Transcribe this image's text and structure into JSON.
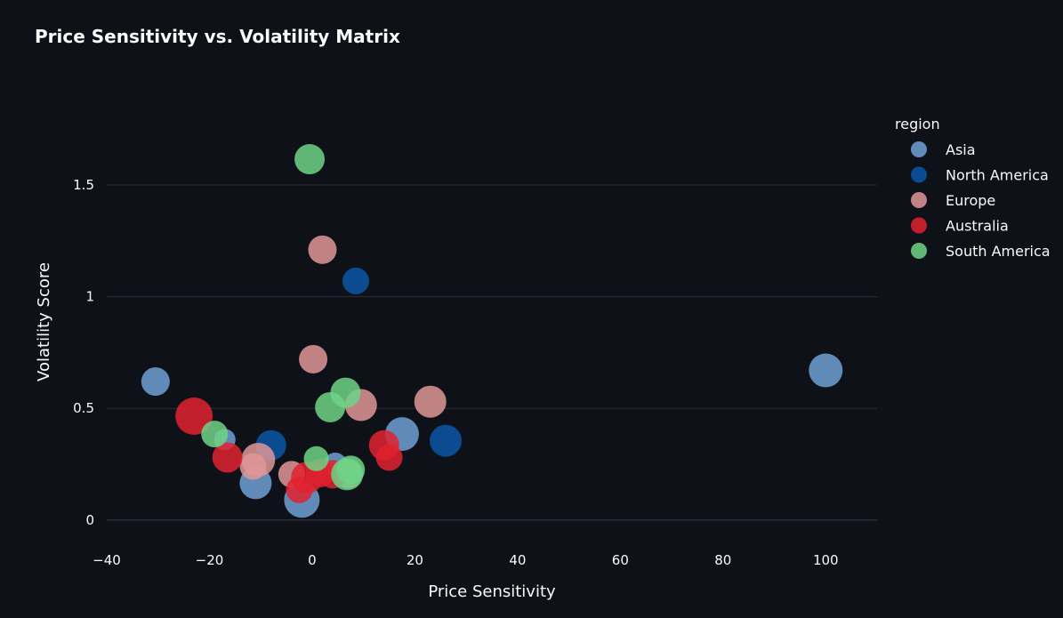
{
  "chart_data": {
    "type": "scatter",
    "title": "Price Sensitivity vs. Volatility Matrix",
    "xlabel": "Price Sensitivity",
    "ylabel": "Volatility Score",
    "xlim": [
      -40,
      110
    ],
    "ylim": [
      -0.1,
      1.85
    ],
    "xticks": [
      -40,
      -20,
      0,
      20,
      40,
      60,
      80,
      100
    ],
    "xtick_labels": [
      "−40",
      "−20",
      "0",
      "20",
      "40",
      "60",
      "80",
      "100"
    ],
    "yticks": [
      0,
      0.5,
      1,
      1.5
    ],
    "ytick_labels": [
      "0",
      "0.5",
      "1",
      "1.5"
    ],
    "grid": "horizontal",
    "legend": {
      "title": "region",
      "placement": "top-right"
    },
    "marker_opacity": 0.85,
    "series": [
      {
        "name": "Asia",
        "color": "#6fa1d6",
        "points": [
          {
            "x": -30.5,
            "y": 0.62,
            "size": 16
          },
          {
            "x": -17,
            "y": 0.36,
            "size": 12
          },
          {
            "x": -11,
            "y": 0.165,
            "size": 18
          },
          {
            "x": -2,
            "y": 0.09,
            "size": 20
          },
          {
            "x": 4.5,
            "y": 0.25,
            "size": 13
          },
          {
            "x": 17.5,
            "y": 0.385,
            "size": 19
          },
          {
            "x": 100,
            "y": 0.67,
            "size": 19
          }
        ]
      },
      {
        "name": "North America",
        "color": "#0a56a8",
        "points": [
          {
            "x": -8,
            "y": 0.335,
            "size": 17
          },
          {
            "x": 8.5,
            "y": 1.07,
            "size": 15
          },
          {
            "x": 26,
            "y": 0.355,
            "size": 18
          }
        ]
      },
      {
        "name": "Europe",
        "color": "#df9696",
        "points": [
          {
            "x": 2,
            "y": 1.21,
            "size": 16
          },
          {
            "x": 0.2,
            "y": 0.72,
            "size": 16
          },
          {
            "x": 9.5,
            "y": 0.515,
            "size": 18
          },
          {
            "x": 23,
            "y": 0.53,
            "size": 18
          },
          {
            "x": -10.5,
            "y": 0.27,
            "size": 19
          },
          {
            "x": -11.5,
            "y": 0.24,
            "size": 15
          },
          {
            "x": -4,
            "y": 0.205,
            "size": 15
          },
          {
            "x": 7,
            "y": 0.205,
            "size": 16
          }
        ]
      },
      {
        "name": "Australia",
        "color": "#e0222f",
        "points": [
          {
            "x": -23,
            "y": 0.465,
            "size": 21
          },
          {
            "x": -16.5,
            "y": 0.28,
            "size": 17
          },
          {
            "x": 14,
            "y": 0.335,
            "size": 17
          },
          {
            "x": 15,
            "y": 0.28,
            "size": 15
          },
          {
            "x": -1,
            "y": 0.19,
            "size": 18
          },
          {
            "x": 1.5,
            "y": 0.21,
            "size": 16
          },
          {
            "x": -2.5,
            "y": 0.135,
            "size": 15
          },
          {
            "x": 4,
            "y": 0.205,
            "size": 16
          }
        ]
      },
      {
        "name": "South America",
        "color": "#6fd486",
        "points": [
          {
            "x": -0.5,
            "y": 1.615,
            "size": 17
          },
          {
            "x": 6.5,
            "y": 0.57,
            "size": 17
          },
          {
            "x": 3.5,
            "y": 0.505,
            "size": 17
          },
          {
            "x": -19,
            "y": 0.385,
            "size": 15
          },
          {
            "x": 0.8,
            "y": 0.275,
            "size": 14
          },
          {
            "x": 6.8,
            "y": 0.205,
            "size": 18
          },
          {
            "x": 7.5,
            "y": 0.225,
            "size": 16
          }
        ]
      }
    ]
  }
}
